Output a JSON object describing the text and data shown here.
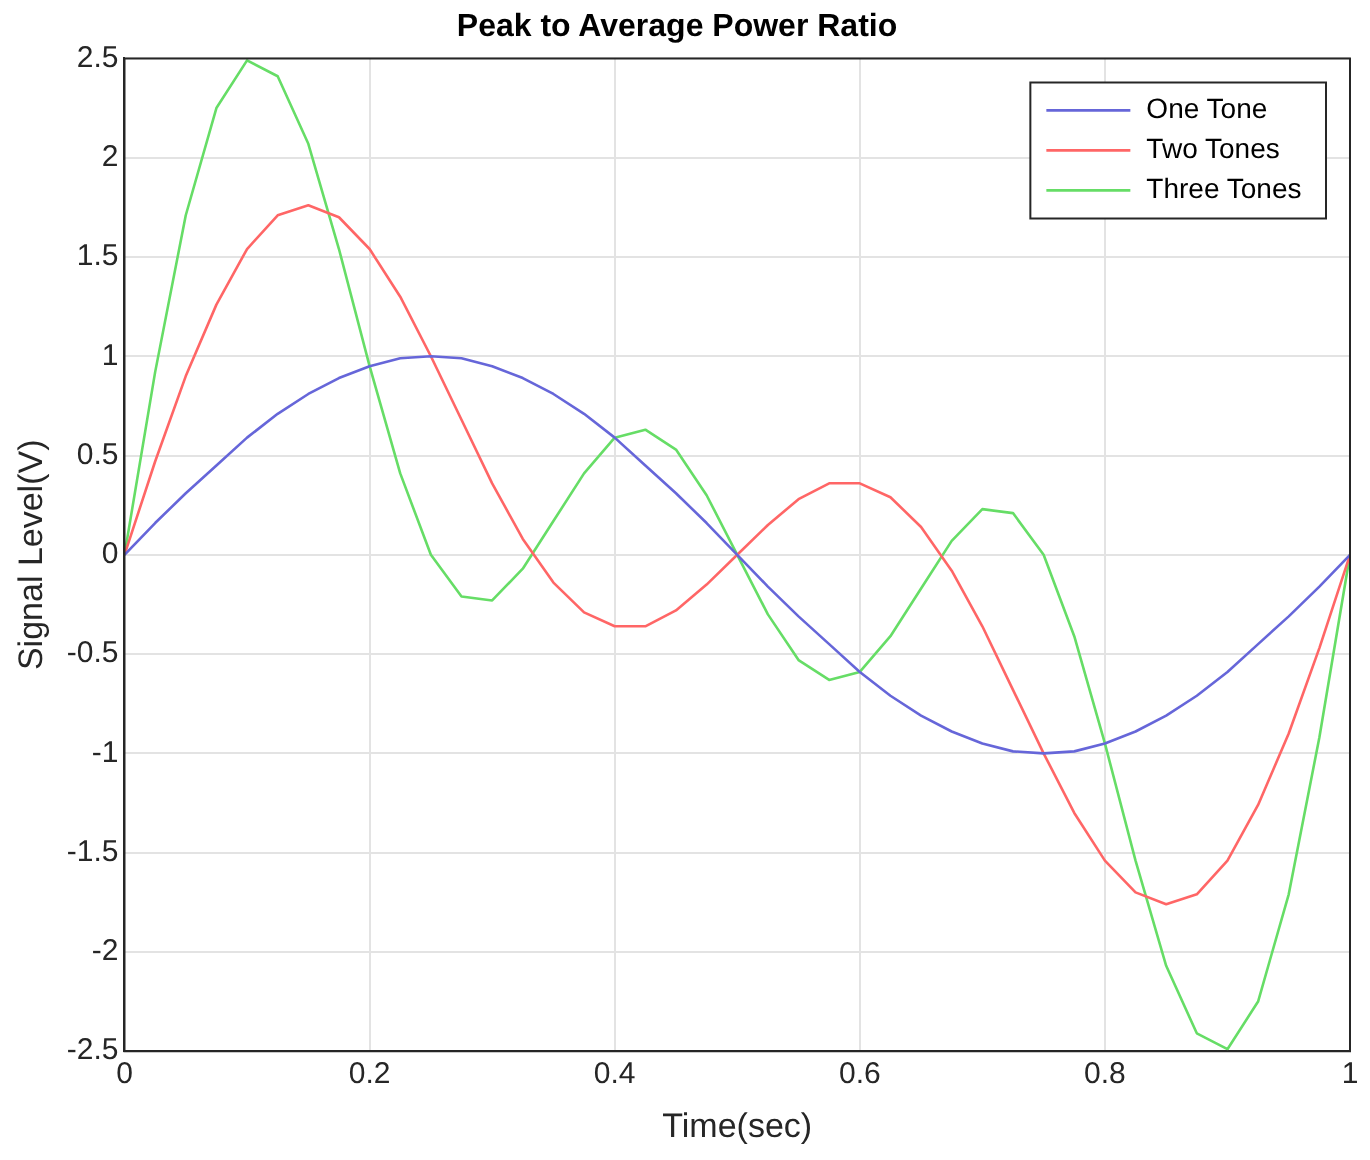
{
  "chart_data": {
    "type": "line",
    "title": "Peak to Average Power Ratio",
    "xlabel": "Time(sec)",
    "ylabel": "Signal Level(V)",
    "x": [
      0,
      0.025,
      0.05,
      0.075,
      0.1,
      0.125,
      0.15,
      0.175,
      0.2,
      0.225,
      0.25,
      0.275,
      0.3,
      0.325,
      0.35,
      0.375,
      0.4,
      0.425,
      0.45,
      0.475,
      0.5,
      0.525,
      0.55,
      0.575,
      0.6,
      0.625,
      0.65,
      0.675,
      0.7,
      0.725,
      0.75,
      0.775,
      0.8,
      0.825,
      0.85,
      0.875,
      0.9,
      0.925,
      0.95,
      0.975,
      1
    ],
    "series": [
      {
        "name": "One Tone",
        "color": "#6666d9",
        "values": [
          0,
          0.16,
          0.31,
          0.45,
          0.59,
          0.71,
          0.81,
          0.89,
          0.95,
          0.99,
          1,
          0.99,
          0.95,
          0.89,
          0.81,
          0.71,
          0.59,
          0.45,
          0.31,
          0.16,
          0,
          -0.16,
          -0.31,
          -0.45,
          -0.59,
          -0.71,
          -0.81,
          -0.89,
          -0.95,
          -0.99,
          -1,
          -0.99,
          -0.95,
          -0.89,
          -0.81,
          -0.71,
          -0.59,
          -0.45,
          -0.31,
          -0.16,
          0
        ]
      },
      {
        "name": "Two Tones",
        "color": "#ff6666",
        "values": [
          0,
          0.47,
          0.9,
          1.26,
          1.54,
          1.71,
          1.76,
          1.7,
          1.54,
          1.3,
          1,
          0.68,
          0.36,
          0.08,
          -0.14,
          -0.29,
          -0.36,
          -0.36,
          -0.28,
          -0.15,
          0,
          0.15,
          0.28,
          0.36,
          0.36,
          0.29,
          0.14,
          -0.08,
          -0.36,
          -0.68,
          -1,
          -1.3,
          -1.54,
          -1.7,
          -1.76,
          -1.71,
          -1.54,
          -1.26,
          -0.9,
          -0.47,
          0
        ]
      },
      {
        "name": "Three Tones",
        "color": "#66dd66",
        "values": [
          0,
          0.92,
          1.71,
          2.25,
          2.49,
          2.41,
          2.07,
          1.54,
          0.95,
          0.41,
          0,
          -0.21,
          -0.23,
          -0.07,
          0.17,
          0.41,
          0.59,
          0.63,
          0.53,
          0.3,
          0,
          -0.3,
          -0.53,
          -0.63,
          -0.59,
          -0.41,
          -0.17,
          0.07,
          0.23,
          0.21,
          0,
          -0.41,
          -0.95,
          -1.54,
          -2.07,
          -2.41,
          -2.49,
          -2.25,
          -1.71,
          -0.92,
          0
        ]
      }
    ],
    "xlim": [
      0,
      1
    ],
    "xticks": [
      0,
      0.2,
      0.4,
      0.6,
      0.8,
      1
    ],
    "ylim": [
      -2.5,
      2.5
    ],
    "yticks": [
      -2.5,
      -2,
      -1.5,
      -1,
      -0.5,
      0,
      0.5,
      1,
      1.5,
      2,
      2.5
    ],
    "grid": true,
    "legend": "top right",
    "marker": "none",
    "line_style": "solid"
  }
}
